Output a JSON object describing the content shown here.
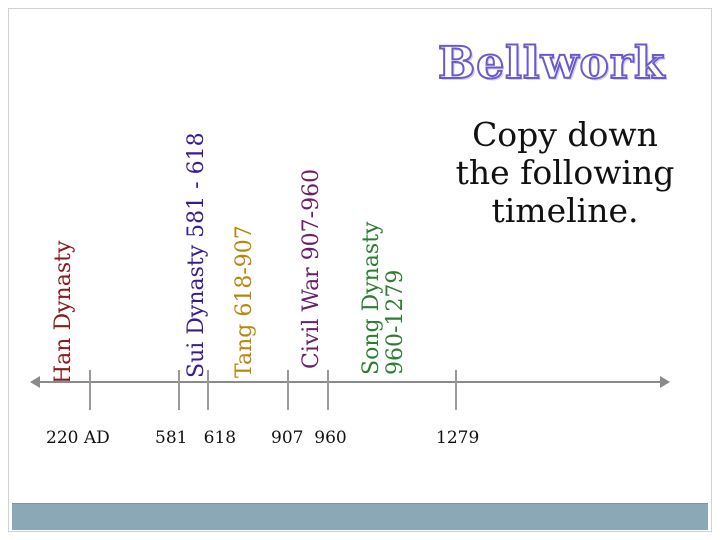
{
  "slide": {
    "title": "Bellwork",
    "instructions": [
      "Copy down",
      "the following",
      "timeline."
    ]
  },
  "timeline": {
    "events": [
      {
        "label": "Han  Dynasty",
        "color": "#8b1a1a"
      },
      {
        "label": "Sui Dynasty 581 - 618",
        "color": "#3b1b8f"
      },
      {
        "label": "Tang 618-907",
        "color": "#b8860b"
      },
      {
        "label": "Civil War 907-960",
        "color": "#6b1f6b"
      },
      {
        "label_lines": [
          "Song Dynasty",
          "960-1279"
        ],
        "color": "#2e7d32"
      }
    ],
    "dates": [
      "220 AD",
      "581   618",
      "907  960",
      "1279"
    ]
  },
  "colors": {
    "title_outline": "#6a5acd",
    "footer_bar": "#8aa8b6",
    "timeline_line": "#8a8a8a"
  }
}
